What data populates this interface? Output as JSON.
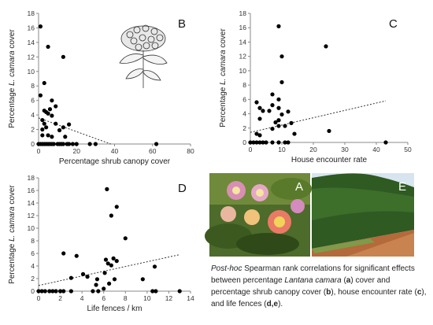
{
  "chart_data": [
    {
      "type": "scatter",
      "panel": "B",
      "xlabel": "Percentage shrub canopy cover",
      "ylabel_prefix": "Percentage ",
      "ylabel_species": "L. camara",
      "ylabel_suffix": " cover",
      "xlim": [
        0,
        80
      ],
      "ylim": [
        0,
        18
      ],
      "xticks": [
        0,
        20,
        40,
        60,
        80
      ],
      "yticks": [
        0,
        2,
        4,
        6,
        8,
        10,
        12,
        14,
        16,
        18
      ],
      "trendline": [
        [
          0,
          3.6
        ],
        [
          38,
          0
        ]
      ],
      "points": [
        [
          1,
          16.2
        ],
        [
          5,
          13.4
        ],
        [
          13,
          12.0
        ],
        [
          3,
          8.4
        ],
        [
          1,
          6.7
        ],
        [
          7,
          6.0
        ],
        [
          9,
          5.2
        ],
        [
          6,
          4.8
        ],
        [
          3,
          4.6
        ],
        [
          4,
          4.4
        ],
        [
          5,
          4.2
        ],
        [
          7,
          3.9
        ],
        [
          2,
          3.3
        ],
        [
          3,
          2.8
        ],
        [
          4,
          2.3
        ],
        [
          2,
          2.0
        ],
        [
          9,
          2.8
        ],
        [
          16,
          2.7
        ],
        [
          13,
          2.3
        ],
        [
          11,
          1.9
        ],
        [
          2,
          1.2
        ],
        [
          5,
          1.2
        ],
        [
          7,
          1.0
        ],
        [
          14,
          1.0
        ],
        [
          0,
          0
        ],
        [
          1,
          0
        ],
        [
          2,
          0
        ],
        [
          3,
          0
        ],
        [
          4,
          0
        ],
        [
          5,
          0
        ],
        [
          6,
          0
        ],
        [
          7,
          0
        ],
        [
          8,
          0
        ],
        [
          10,
          0
        ],
        [
          11,
          0
        ],
        [
          12,
          0
        ],
        [
          13,
          0
        ],
        [
          15,
          0
        ],
        [
          16,
          0
        ],
        [
          18,
          0
        ],
        [
          20,
          0
        ],
        [
          27,
          0
        ],
        [
          30,
          0
        ],
        [
          62,
          0
        ]
      ]
    },
    {
      "type": "scatter",
      "panel": "C",
      "xlabel": "House encounter rate",
      "ylabel_prefix": "Percentage ",
      "ylabel_species": "L. camara",
      "ylabel_suffix": " cover",
      "xlim": [
        0,
        50
      ],
      "ylim": [
        0,
        18
      ],
      "xticks": [
        0,
        10,
        20,
        30,
        40,
        50
      ],
      "yticks": [
        0,
        2,
        4,
        6,
        8,
        10,
        12,
        14,
        16,
        18
      ],
      "trendline": [
        [
          0,
          1.4
        ],
        [
          43,
          5.8
        ]
      ],
      "points": [
        [
          9,
          16.2
        ],
        [
          24,
          13.4
        ],
        [
          10,
          12.0
        ],
        [
          10,
          8.4
        ],
        [
          7,
          6.7
        ],
        [
          9,
          6.0
        ],
        [
          2,
          5.6
        ],
        [
          7,
          5.2
        ],
        [
          3,
          4.8
        ],
        [
          9,
          4.8
        ],
        [
          4,
          4.4
        ],
        [
          6,
          4.4
        ],
        [
          12,
          4.3
        ],
        [
          10,
          3.9
        ],
        [
          3,
          3.3
        ],
        [
          9,
          3.1
        ],
        [
          8,
          2.8
        ],
        [
          13,
          2.7
        ],
        [
          9,
          2.3
        ],
        [
          11,
          2.3
        ],
        [
          7,
          1.9
        ],
        [
          14,
          1.2
        ],
        [
          3,
          1.0
        ],
        [
          2,
          1.2
        ],
        [
          25,
          1.6
        ],
        [
          0,
          0
        ],
        [
          1,
          0
        ],
        [
          2,
          0
        ],
        [
          3,
          0
        ],
        [
          4,
          0
        ],
        [
          5,
          0
        ],
        [
          7,
          0
        ],
        [
          9,
          0
        ],
        [
          11,
          0
        ],
        [
          12,
          0
        ],
        [
          43,
          0
        ]
      ]
    },
    {
      "type": "scatter",
      "panel": "D",
      "xlabel": "Life fences / km",
      "ylabel_prefix": "Percentage ",
      "ylabel_species": "L. camara",
      "ylabel_suffix": " cover",
      "xlim": [
        0,
        14
      ],
      "ylim": [
        0,
        18
      ],
      "xticks": [
        0,
        2,
        4,
        6,
        8,
        10,
        12,
        14
      ],
      "yticks": [
        0,
        2,
        4,
        6,
        8,
        10,
        12,
        14,
        16,
        18
      ],
      "trendline": [
        [
          0,
          0.9
        ],
        [
          13,
          5.8
        ]
      ],
      "points": [
        [
          6.3,
          16.2
        ],
        [
          7.2,
          13.4
        ],
        [
          6.7,
          12.0
        ],
        [
          8.0,
          8.4
        ],
        [
          2.3,
          6.0
        ],
        [
          3.5,
          5.6
        ],
        [
          6.9,
          5.2
        ],
        [
          6.2,
          5.0
        ],
        [
          7.2,
          4.8
        ],
        [
          6.4,
          4.4
        ],
        [
          6.7,
          4.1
        ],
        [
          10.7,
          3.9
        ],
        [
          4.1,
          2.7
        ],
        [
          4.5,
          2.3
        ],
        [
          6.1,
          2.9
        ],
        [
          5.4,
          1.9
        ],
        [
          7.0,
          1.9
        ],
        [
          9.6,
          1.9
        ],
        [
          6.5,
          1.2
        ],
        [
          5.3,
          1.0
        ],
        [
          3.0,
          2.1
        ],
        [
          0,
          0
        ],
        [
          0.3,
          0
        ],
        [
          0.6,
          0
        ],
        [
          1.0,
          0
        ],
        [
          1.3,
          0
        ],
        [
          1.6,
          0
        ],
        [
          2.0,
          0
        ],
        [
          2.3,
          0
        ],
        [
          3.0,
          0
        ],
        [
          5.0,
          0
        ],
        [
          5.5,
          0
        ],
        [
          10.5,
          0
        ],
        [
          10.8,
          0
        ],
        [
          13.0,
          0
        ],
        [
          6.0,
          0.4
        ]
      ]
    }
  ],
  "photos": {
    "left_letter": "A",
    "right_letter": "E"
  },
  "caption": {
    "hoc": "Post-hoc",
    "t1": " Spearman rank correlations for significant effects between percentage ",
    "species": "Lantana camara",
    "t2": " (",
    "a": "a",
    "t3": ") cover and percentage shrub canopy cover (",
    "b": "b",
    "t4": "), house encounter rate (",
    "c": "c",
    "t5": "), and life fences (",
    "de": "d,e",
    "t6": ")."
  }
}
